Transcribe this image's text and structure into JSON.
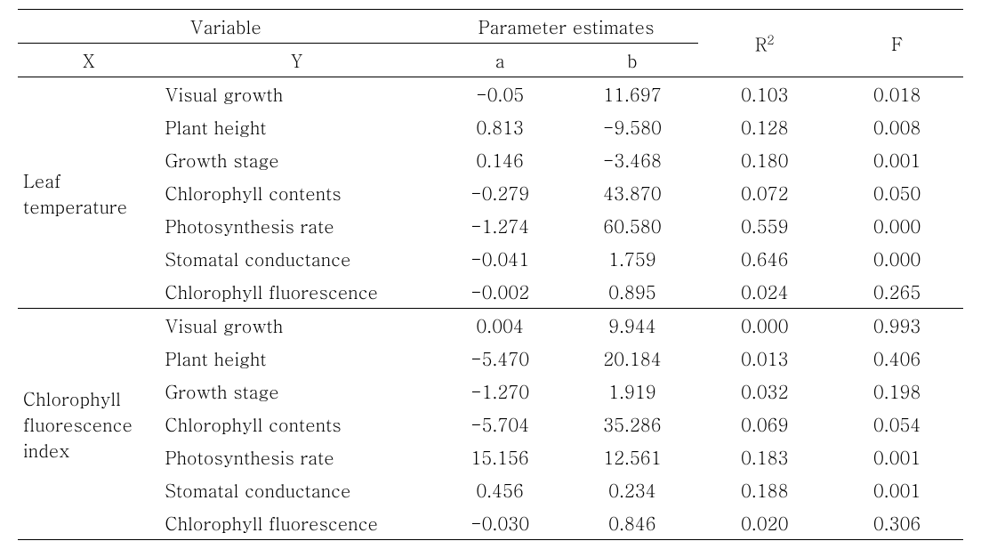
{
  "type": "table",
  "header": {
    "variable": "Variable",
    "param_est": "Parameter estimates",
    "x": "X",
    "y": "Y",
    "a": "a",
    "b": "b",
    "r2_html": "R<sup>2</sup>",
    "f": "F"
  },
  "groups": [
    {
      "x_label": "Leaf temperature",
      "rows": [
        {
          "y": "Visual growth",
          "a": "-0.05",
          "b": "11.697",
          "r2": "0.103",
          "f": "0.018"
        },
        {
          "y": "Plant height",
          "a": "0.813",
          "b": "-9.580",
          "r2": "0.128",
          "f": "0.008"
        },
        {
          "y": "Growth stage",
          "a": "0.146",
          "b": "-3.468",
          "r2": "0.180",
          "f": "0.001"
        },
        {
          "y": "Chlorophyll contents",
          "a": "-0.279",
          "b": "43.870",
          "r2": "0.072",
          "f": "0.050"
        },
        {
          "y": "Photosynthesis rate",
          "a": "-1.274",
          "b": "60.580",
          "r2": "0.559",
          "f": "0.000"
        },
        {
          "y": "Stomatal conductance",
          "a": "-0.041",
          "b": "1.759",
          "r2": "0.646",
          "f": "0.000"
        },
        {
          "y": "Chlorophyll fluorescence",
          "a": "-0.002",
          "b": "0.895",
          "r2": "0.024",
          "f": "0.265"
        }
      ]
    },
    {
      "x_label": "Chlorophyll fluorescence index",
      "rows": [
        {
          "y": "Visual growth",
          "a": "0.004",
          "b": "9.944",
          "r2": "0.000",
          "f": "0.993"
        },
        {
          "y": "Plant height",
          "a": "-5.470",
          "b": "20.184",
          "r2": "0.013",
          "f": "0.406"
        },
        {
          "y": "Growth stage",
          "a": "-1.270",
          "b": "1.919",
          "r2": "0.032",
          "f": "0.198"
        },
        {
          "y": "Chlorophyll contents",
          "a": "-5.704",
          "b": "35.286",
          "r2": "0.069",
          "f": "0.054"
        },
        {
          "y": "Photosynthesis rate",
          "a": "15.156",
          "b": "12.561",
          "r2": "0.183",
          "f": "0.001"
        },
        {
          "y": "Stomatal conductance",
          "a": "0.456",
          "b": "0.234",
          "r2": "0.188",
          "f": "0.001"
        },
        {
          "y": "Chlorophyll fluorescence",
          "a": "-0.030",
          "b": "0.846",
          "r2": "0.020",
          "f": "0.306"
        }
      ]
    }
  ],
  "style": {
    "font_family": "Batang, Times New Roman, serif",
    "font_size_pt": 15,
    "text_color": "#000000",
    "background_color": "#ffffff",
    "border_color": "#000000",
    "columns": [
      "X",
      "Y",
      "a",
      "b",
      "R2",
      "F"
    ],
    "col_widths_pct": [
      15,
      29,
      14,
      14,
      14,
      14
    ],
    "alignment": {
      "X": "left",
      "Y": "left",
      "a": "center",
      "b": "center",
      "R2": "center",
      "F": "center"
    }
  }
}
